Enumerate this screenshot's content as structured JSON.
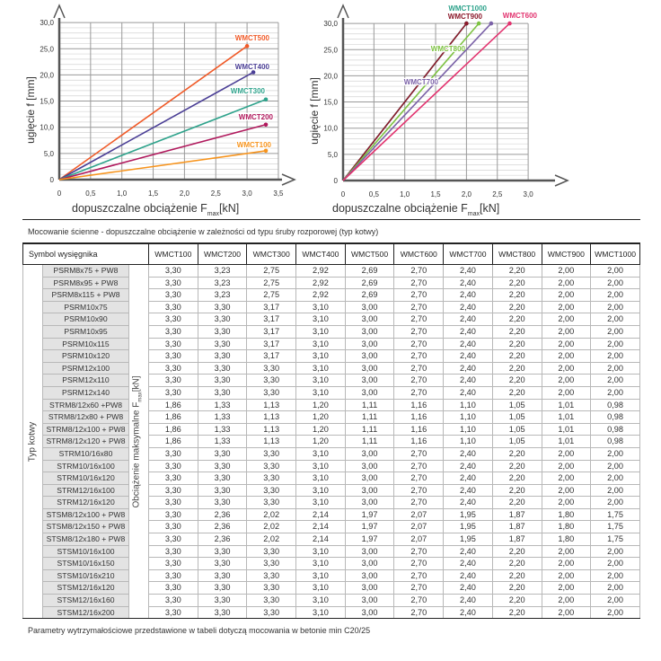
{
  "chart_data": [
    {
      "type": "line",
      "ylabel": "ugięcie f [mm]",
      "xlabel_main": "dopuszczalne obciążenie F",
      "xlabel_sub": "max",
      "xlabel_unit": "[kN]",
      "xlim": [
        0,
        3.5
      ],
      "ylim": [
        0,
        30
      ],
      "grid": true,
      "xticks": [
        "0",
        "0,5",
        "1,0",
        "1,5",
        "2,0",
        "2,5",
        "3,0",
        "3,5"
      ],
      "yticks": [
        "0",
        "5,0",
        "10,0",
        "15,0",
        "20,0",
        "25,0",
        "30,0"
      ],
      "series": [
        {
          "name": "WMCT500",
          "color": "#f05a28",
          "points": [
            [
              0,
              0
            ],
            [
              3.0,
              25.5
            ]
          ]
        },
        {
          "name": "WMCT400",
          "color": "#4b3f96",
          "points": [
            [
              0,
              0
            ],
            [
              3.1,
              20.5
            ]
          ]
        },
        {
          "name": "WMCT300",
          "color": "#2fa38c",
          "points": [
            [
              0,
              0
            ],
            [
              3.3,
              15.3
            ]
          ]
        },
        {
          "name": "WMCT200",
          "color": "#b0185c",
          "points": [
            [
              0,
              0
            ],
            [
              3.3,
              10.5
            ]
          ]
        },
        {
          "name": "WMCT100",
          "color": "#f7941d",
          "points": [
            [
              0,
              0
            ],
            [
              3.3,
              5.5
            ]
          ]
        }
      ]
    },
    {
      "type": "line",
      "ylabel": "ugięcie f [mm]",
      "xlabel_main": "dopuszczalne obciążenie F",
      "xlabel_sub": "max",
      "xlabel_unit": "[kN]",
      "xlim": [
        0,
        3.0
      ],
      "ylim": [
        0,
        30
      ],
      "grid": true,
      "xticks": [
        "0",
        "0,5",
        "1,0",
        "1,5",
        "2,0",
        "2,5",
        "3,0"
      ],
      "yticks": [
        "0",
        "5,0",
        "10,0",
        "15,0",
        "20,0",
        "25,0",
        "30,0"
      ],
      "series": [
        {
          "name": "WMCT1000",
          "color": "#2fa38c",
          "points": [
            [
              0,
              0
            ],
            [
              2.0,
              30
            ]
          ]
        },
        {
          "name": "WMCT900",
          "color": "#8b1a2b",
          "points": [
            [
              0,
              0
            ],
            [
              2.0,
              30
            ]
          ]
        },
        {
          "name": "WMCT800",
          "color": "#7dc242",
          "points": [
            [
              0,
              0
            ],
            [
              2.2,
              30
            ]
          ]
        },
        {
          "name": "WMCT700",
          "color": "#7b62a8",
          "points": [
            [
              0,
              0
            ],
            [
              2.4,
              30
            ]
          ]
        },
        {
          "name": "WMCT600",
          "color": "#e2336f",
          "points": [
            [
              0,
              0
            ],
            [
              2.7,
              30
            ]
          ]
        }
      ]
    }
  ],
  "table": {
    "caption": "Mocowanie ścienne - dopuszczalne obciążenie w zależności od typu śruby rozporowej (typ kotwy)",
    "symbol_header": "Symbol wysięgnika",
    "row_group_label": "Typ kotwy",
    "value_label_main": "Obciążenie maksymalne F",
    "value_label_sub": "max",
    "value_label_unit": "[kN]",
    "columns": [
      "WMCT100",
      "WMCT200",
      "WMCT300",
      "WMCT400",
      "WMCT500",
      "WMCT600",
      "WMCT700",
      "WMCT800",
      "WMCT900",
      "WMCT1000"
    ],
    "rows": [
      {
        "anchor": "PSRM8x75 + PW8",
        "values": [
          "3,30",
          "3,23",
          "2,75",
          "2,92",
          "2,69",
          "2,70",
          "2,40",
          "2,20",
          "2,00",
          "2,00"
        ]
      },
      {
        "anchor": "PSRM8x95 + PW8",
        "values": [
          "3,30",
          "3,23",
          "2,75",
          "2,92",
          "2,69",
          "2,70",
          "2,40",
          "2,20",
          "2,00",
          "2,00"
        ]
      },
      {
        "anchor": "PSRM8x115 + PW8",
        "values": [
          "3,30",
          "3,23",
          "2,75",
          "2,92",
          "2,69",
          "2,70",
          "2,40",
          "2,20",
          "2,00",
          "2,00"
        ]
      },
      {
        "anchor": "PSRM10x75",
        "values": [
          "3,30",
          "3,30",
          "3,17",
          "3,10",
          "3,00",
          "2,70",
          "2,40",
          "2,20",
          "2,00",
          "2,00"
        ]
      },
      {
        "anchor": "PSRM10x90",
        "values": [
          "3,30",
          "3,30",
          "3,17",
          "3,10",
          "3,00",
          "2,70",
          "2,40",
          "2,20",
          "2,00",
          "2,00"
        ]
      },
      {
        "anchor": "PSRM10x95",
        "values": [
          "3,30",
          "3,30",
          "3,17",
          "3,10",
          "3,00",
          "2,70",
          "2,40",
          "2,20",
          "2,00",
          "2,00"
        ]
      },
      {
        "anchor": "PSRM10x115",
        "values": [
          "3,30",
          "3,30",
          "3,17",
          "3,10",
          "3,00",
          "2,70",
          "2,40",
          "2,20",
          "2,00",
          "2,00"
        ]
      },
      {
        "anchor": "PSRM10x120",
        "values": [
          "3,30",
          "3,30",
          "3,17",
          "3,10",
          "3,00",
          "2,70",
          "2,40",
          "2,20",
          "2,00",
          "2,00"
        ]
      },
      {
        "anchor": "PSRM12x100",
        "values": [
          "3,30",
          "3,30",
          "3,30",
          "3,10",
          "3,00",
          "2,70",
          "2,40",
          "2,20",
          "2,00",
          "2,00"
        ]
      },
      {
        "anchor": "PSRM12x110",
        "values": [
          "3,30",
          "3,30",
          "3,30",
          "3,10",
          "3,00",
          "2,70",
          "2,40",
          "2,20",
          "2,00",
          "2,00"
        ]
      },
      {
        "anchor": "PSRM12x140",
        "values": [
          "3,30",
          "3,30",
          "3,30",
          "3,10",
          "3,00",
          "2,70",
          "2,40",
          "2,20",
          "2,00",
          "2,00"
        ]
      },
      {
        "anchor": "STRM8/12x60 +PW8",
        "values": [
          "1,86",
          "1,33",
          "1,13",
          "1,20",
          "1,11",
          "1,16",
          "1,10",
          "1,05",
          "1,01",
          "0,98"
        ]
      },
      {
        "anchor": "STRM8/12x80 + PW8",
        "values": [
          "1,86",
          "1,33",
          "1,13",
          "1,20",
          "1,11",
          "1,16",
          "1,10",
          "1,05",
          "1,01",
          "0,98"
        ]
      },
      {
        "anchor": "STRM8/12x100 + PW8",
        "values": [
          "1,86",
          "1,33",
          "1,13",
          "1,20",
          "1,11",
          "1,16",
          "1,10",
          "1,05",
          "1,01",
          "0,98"
        ]
      },
      {
        "anchor": "STRM8/12x120 + PW8",
        "values": [
          "1,86",
          "1,33",
          "1,13",
          "1,20",
          "1,11",
          "1,16",
          "1,10",
          "1,05",
          "1,01",
          "0,98"
        ]
      },
      {
        "anchor": "STRM10/16x80",
        "values": [
          "3,30",
          "3,30",
          "3,30",
          "3,10",
          "3,00",
          "2,70",
          "2,40",
          "2,20",
          "2,00",
          "2,00"
        ]
      },
      {
        "anchor": "STRM10/16x100",
        "values": [
          "3,30",
          "3,30",
          "3,30",
          "3,10",
          "3,00",
          "2,70",
          "2,40",
          "2,20",
          "2,00",
          "2,00"
        ]
      },
      {
        "anchor": "STRM10/16x120",
        "values": [
          "3,30",
          "3,30",
          "3,30",
          "3,10",
          "3,00",
          "2,70",
          "2,40",
          "2,20",
          "2,00",
          "2,00"
        ]
      },
      {
        "anchor": "STRM12/16x100",
        "values": [
          "3,30",
          "3,30",
          "3,30",
          "3,10",
          "3,00",
          "2,70",
          "2,40",
          "2,20",
          "2,00",
          "2,00"
        ]
      },
      {
        "anchor": "STRM12/16x120",
        "values": [
          "3,30",
          "3,30",
          "3,30",
          "3,10",
          "3,00",
          "2,70",
          "2,40",
          "2,20",
          "2,00",
          "2,00"
        ]
      },
      {
        "anchor": "STSM8/12x100 + PW8",
        "values": [
          "3,30",
          "2,36",
          "2,02",
          "2,14",
          "1,97",
          "2,07",
          "1,95",
          "1,87",
          "1,80",
          "1,75"
        ]
      },
      {
        "anchor": "STSM8/12x150 + PW8",
        "values": [
          "3,30",
          "2,36",
          "2,02",
          "2,14",
          "1,97",
          "2,07",
          "1,95",
          "1,87",
          "1,80",
          "1,75"
        ]
      },
      {
        "anchor": "STSM8/12x180 + PW8",
        "values": [
          "3,30",
          "2,36",
          "2,02",
          "2,14",
          "1,97",
          "2,07",
          "1,95",
          "1,87",
          "1,80",
          "1,75"
        ]
      },
      {
        "anchor": "STSM10/16x100",
        "values": [
          "3,30",
          "3,30",
          "3,30",
          "3,10",
          "3,00",
          "2,70",
          "2,40",
          "2,20",
          "2,00",
          "2,00"
        ]
      },
      {
        "anchor": "STSM10/16x150",
        "values": [
          "3,30",
          "3,30",
          "3,30",
          "3,10",
          "3,00",
          "2,70",
          "2,40",
          "2,20",
          "2,00",
          "2,00"
        ]
      },
      {
        "anchor": "STSM10/16x210",
        "values": [
          "3,30",
          "3,30",
          "3,30",
          "3,10",
          "3,00",
          "2,70",
          "2,40",
          "2,20",
          "2,00",
          "2,00"
        ]
      },
      {
        "anchor": "STSM12/16x120",
        "values": [
          "3,30",
          "3,30",
          "3,30",
          "3,10",
          "3,00",
          "2,70",
          "2,40",
          "2,20",
          "2,00",
          "2,00"
        ]
      },
      {
        "anchor": "STSM12/16x160",
        "values": [
          "3,30",
          "3,30",
          "3,30",
          "3,10",
          "3,00",
          "2,70",
          "2,40",
          "2,20",
          "2,00",
          "2,00"
        ]
      },
      {
        "anchor": "STSM12/16x200",
        "values": [
          "3,30",
          "3,30",
          "3,30",
          "3,10",
          "3,00",
          "2,70",
          "2,40",
          "2,20",
          "2,00",
          "2,00"
        ]
      }
    ],
    "footer": "Parametry wytrzymałościowe przedstawione w tabeli dotyczą mocowania w betonie min C20/25"
  }
}
